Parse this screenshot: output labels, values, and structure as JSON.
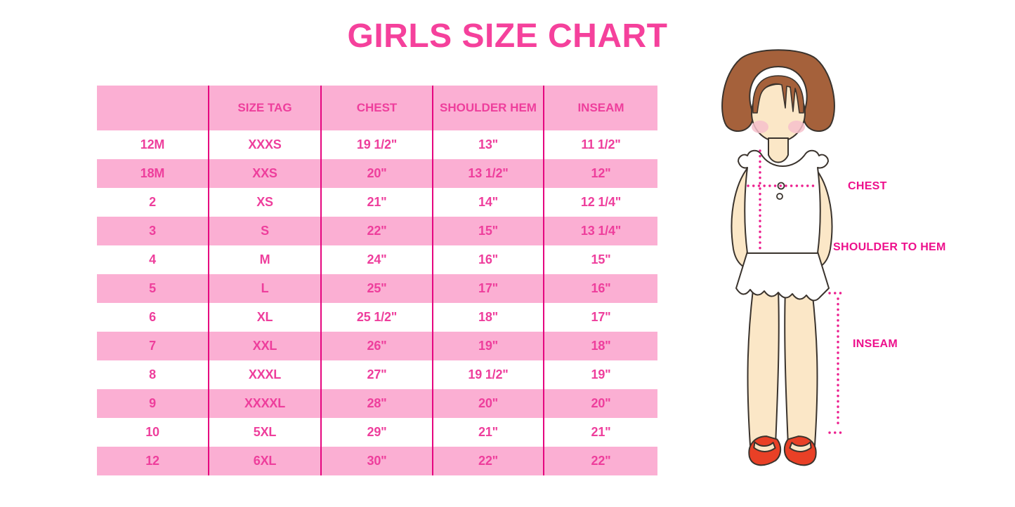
{
  "title": "GIRLS SIZE CHART",
  "colors": {
    "title_pink": "#f5419c",
    "table_text_pink": "#ee3e9c",
    "row_pink_bg": "#fbafd3",
    "grid_line_magenta": "#e5067f",
    "label_magenta": "#ed108c",
    "dotted_line_magenta": "#ec1e8e",
    "hair_brown": "#a5613b",
    "skin": "#fbe7c7",
    "blush": "#f6bfcb",
    "shoe_red": "#e94026"
  },
  "chart_data": {
    "type": "table",
    "title": "GIRLS SIZE CHART",
    "columns": [
      "",
      "SIZE TAG",
      "CHEST",
      "SHOULDER HEM",
      "INSEAM"
    ],
    "rows": [
      [
        "12M",
        "XXXS",
        "19 1/2\"",
        "13\"",
        "11 1/2\""
      ],
      [
        "18M",
        "XXS",
        "20\"",
        "13 1/2\"",
        "12\""
      ],
      [
        "2",
        "XS",
        "21\"",
        "14\"",
        "12 1/4\""
      ],
      [
        "3",
        "S",
        "22\"",
        "15\"",
        "13 1/4\""
      ],
      [
        "4",
        "M",
        "24\"",
        "16\"",
        "15\""
      ],
      [
        "5",
        "L",
        "25\"",
        "17\"",
        "16\""
      ],
      [
        "6",
        "XL",
        "25 1/2\"",
        "18\"",
        "17\""
      ],
      [
        "7",
        "XXL",
        "26\"",
        "19\"",
        "18\""
      ],
      [
        "8",
        "XXXL",
        "27\"",
        "19 1/2\"",
        "19\""
      ],
      [
        "9",
        "XXXXL",
        "28\"",
        "20\"",
        "20\""
      ],
      [
        "10",
        "5XL",
        "29\"",
        "21\"",
        "21\""
      ],
      [
        "12",
        "6XL",
        "30\"",
        "22\"",
        "22\""
      ]
    ],
    "row_striping": "alternating white/pink starting white",
    "annotations": [
      "CHEST",
      "SHOULDER TO HEM",
      "INSEAM"
    ]
  },
  "figure": {
    "description": "cartoon girl with brown bob hair, white ruffled top, white skirt, red mary-jane shoes, magenta dotted measurement guides",
    "labels": {
      "chest": "CHEST",
      "shoulder_to_hem": "SHOULDER TO HEM",
      "inseam": "INSEAM"
    }
  }
}
